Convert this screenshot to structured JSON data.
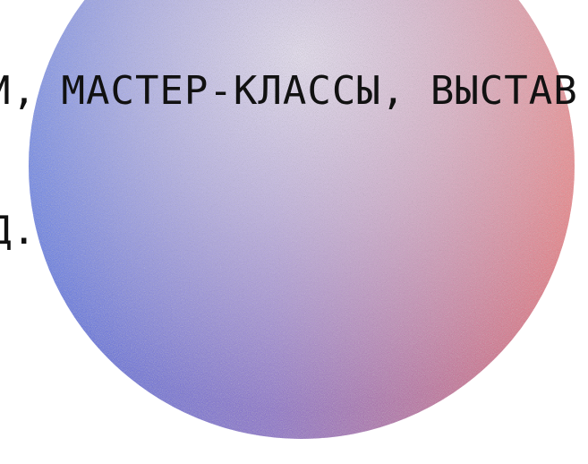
{
  "hero": {
    "text_line_1": "И, МАСТЕР-КЛАССЫ, ВЫСТАВ",
    "text_line_2": "Д."
  },
  "colors": {
    "left": "#5b6fe0",
    "top_mid": "#a470c0",
    "right": "#ee6d6f",
    "text": "#111111"
  },
  "icons": {
    "hero_circle": "noise-gradient-circle"
  }
}
